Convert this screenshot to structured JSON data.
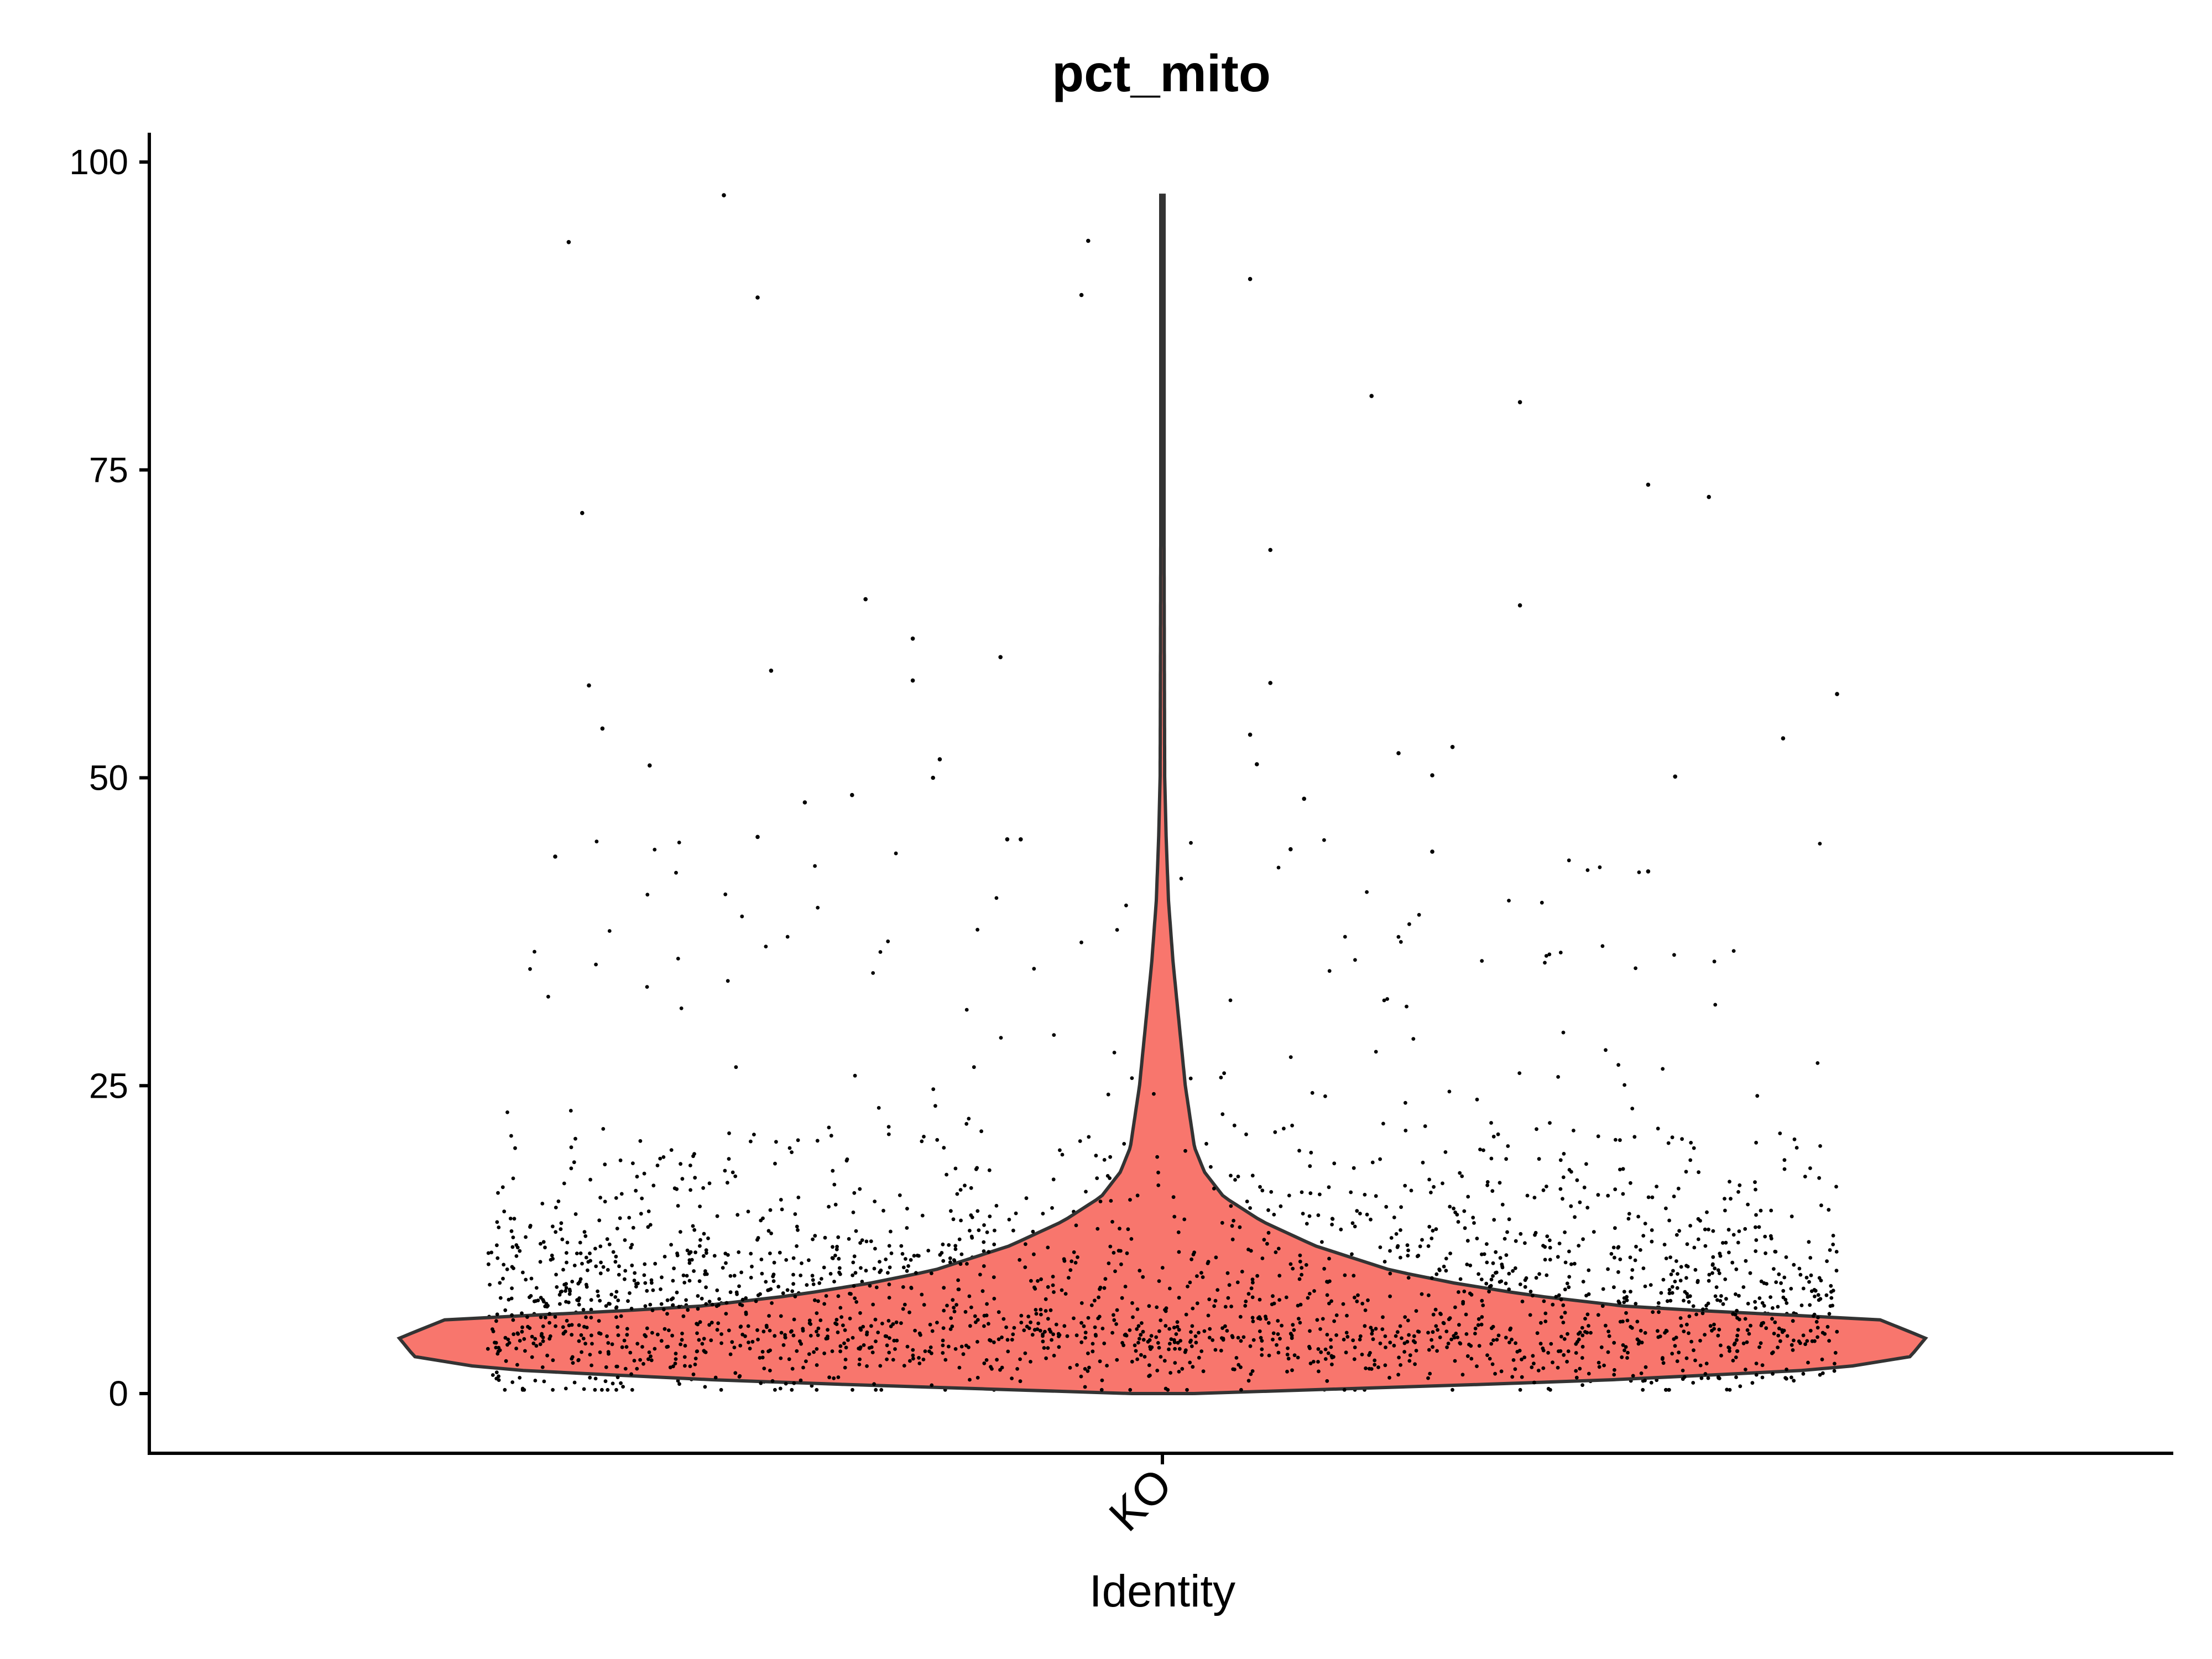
{
  "chart_data": {
    "type": "violin",
    "title": "pct_mito",
    "xlabel": "Identity",
    "ylabel": "",
    "categories": [
      "KO"
    ],
    "ylim": [
      -5,
      102
    ],
    "yticks": [
      0,
      25,
      50,
      75,
      100
    ],
    "ytick_labels": [
      "0",
      "25",
      "50",
      "75",
      "100"
    ],
    "grid": false,
    "legend": "none",
    "colors": {
      "violin_fill": "#F8766D",
      "violin_stroke": "#333333",
      "points": "#000000"
    },
    "series": [
      {
        "category": "KO",
        "y_min": 0.0,
        "y_max": 97.3,
        "mode": 4.5,
        "density_profile": [
          [
            0,
            0.04
          ],
          [
            1,
            0.55
          ],
          [
            2,
            0.88
          ],
          [
            3,
            0.98
          ],
          [
            4.5,
            1.0
          ],
          [
            6,
            0.94
          ],
          [
            7,
            0.62
          ],
          [
            8,
            0.48
          ],
          [
            9,
            0.38
          ],
          [
            10,
            0.3
          ],
          [
            12,
            0.2
          ],
          [
            14,
            0.13
          ],
          [
            16,
            0.08
          ],
          [
            18,
            0.055
          ],
          [
            20,
            0.042
          ],
          [
            25,
            0.03
          ],
          [
            30,
            0.022
          ],
          [
            35,
            0.014
          ],
          [
            40,
            0.008
          ],
          [
            45,
            0.005
          ],
          [
            50,
            0.003
          ],
          [
            60,
            0.0025
          ],
          [
            75,
            0.002
          ],
          [
            97.3,
            0.001
          ]
        ],
        "outliers": [
          [
            -0.88,
            93.5
          ],
          [
            -0.65,
            97.3
          ],
          [
            -0.6,
            89.0
          ],
          [
            -0.11,
            93.6
          ],
          [
            -0.12,
            89.2
          ],
          [
            0.13,
            90.5
          ],
          [
            0.31,
            81.0
          ],
          [
            0.53,
            80.5
          ],
          [
            -0.86,
            71.5
          ],
          [
            0.16,
            68.5
          ],
          [
            0.72,
            73.8
          ],
          [
            0.81,
            72.8
          ],
          [
            -0.44,
            64.5
          ],
          [
            -0.37,
            61.3
          ],
          [
            0.53,
            64.0
          ],
          [
            -0.24,
            59.8
          ],
          [
            -0.58,
            58.7
          ],
          [
            -0.85,
            57.5
          ],
          [
            0.16,
            57.7
          ],
          [
            1.0,
            56.8
          ],
          [
            -0.83,
            54.0
          ],
          [
            -0.37,
            57.9
          ],
          [
            0.13,
            53.5
          ],
          [
            0.43,
            52.5
          ],
          [
            0.92,
            53.2
          ],
          [
            -0.76,
            51.0
          ],
          [
            -0.33,
            51.5
          ],
          [
            0.35,
            52.0
          ],
          [
            -0.34,
            50.0
          ],
          [
            0.4,
            50.2
          ],
          [
            0.76,
            50.1
          ],
          [
            -0.53,
            48.0
          ],
          [
            -0.46,
            48.6
          ],
          [
            0.21,
            48.3
          ],
          [
            -0.9,
            43.6
          ],
          [
            -0.6,
            45.2
          ],
          [
            0.14,
            51.1
          ],
          [
            -0.23,
            45.0
          ],
          [
            -0.21,
            45.0
          ],
          [
            0.19,
            44.2
          ],
          [
            0.4,
            44.0
          ],
          [
            0.72,
            42.4
          ]
        ],
        "n_points": 3500
      }
    ]
  }
}
